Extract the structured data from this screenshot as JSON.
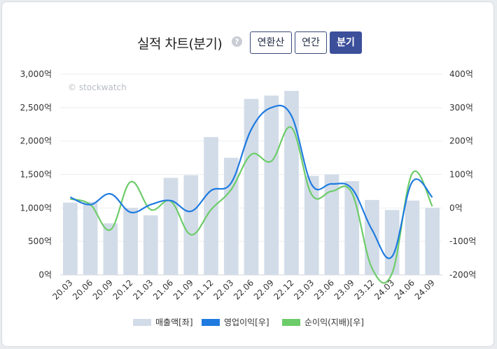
{
  "header": {
    "title": "실적 차트(분기)",
    "help_icon": "question-icon",
    "help_glyph": "?",
    "buttons": [
      {
        "label": "연환산",
        "active": false
      },
      {
        "label": "연간",
        "active": false
      },
      {
        "label": "분기",
        "active": true
      }
    ]
  },
  "chart_data": {
    "type": "bar",
    "watermark": "© stockwatch",
    "categories": [
      "20.03",
      "20.06",
      "20.09",
      "20.12",
      "21.03",
      "21.06",
      "21.09",
      "21.12",
      "22.03",
      "22.06",
      "22.09",
      "22.12",
      "23.03",
      "23.06",
      "23.09",
      "23.12",
      "24.03",
      "24.06",
      "24.09"
    ],
    "left_axis": {
      "ticks": [
        "0억",
        "500억",
        "1,000억",
        "1,500억",
        "2,000억",
        "2,500억",
        "3,000억"
      ],
      "ylim": [
        0,
        3000
      ]
    },
    "right_axis": {
      "ticks": [
        "-200억",
        "-100억",
        "0억",
        "100억",
        "200억",
        "300억",
        "400억"
      ],
      "ylim": [
        -200,
        400
      ]
    },
    "series": [
      {
        "name": "매출액[좌]",
        "type": "bar",
        "axis": "left",
        "color": "#d2dce8",
        "values": [
          1080,
          1090,
          770,
          1000,
          890,
          1450,
          1490,
          2060,
          1750,
          2630,
          2680,
          2750,
          1480,
          1500,
          1400,
          1120,
          970,
          1110,
          1000
        ]
      },
      {
        "name": "영업이익[우]",
        "type": "line",
        "axis": "right",
        "color": "#1f7be0",
        "values": [
          32,
          10,
          42,
          -13,
          10,
          22,
          -10,
          52,
          75,
          235,
          300,
          275,
          70,
          72,
          58,
          -65,
          -145,
          78,
          32
        ]
      },
      {
        "name": "순이익(지배)[우]",
        "type": "line",
        "axis": "right",
        "color": "#6dcc6a",
        "values": [
          27,
          10,
          -65,
          78,
          -5,
          20,
          -80,
          -5,
          55,
          160,
          140,
          240,
          40,
          50,
          45,
          -180,
          -195,
          103,
          5
        ]
      }
    ],
    "grid": true,
    "legend_position": "bottom"
  }
}
